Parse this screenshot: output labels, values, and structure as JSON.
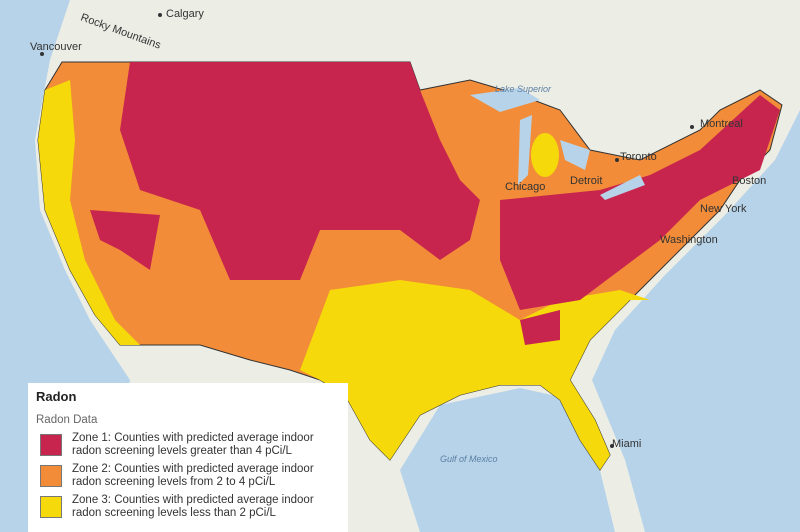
{
  "map": {
    "labels": {
      "rocky": "Rocky Mountains",
      "calgary": "Calgary",
      "vancouver": "Vancouver",
      "montreal": "Montreal",
      "toronto": "Toronto",
      "detroit": "Detroit",
      "chicago": "Chicago",
      "boston": "Boston",
      "new_york": "New York",
      "washington": "Washington",
      "miami": "Miami",
      "lake_superior": "Lake Superior",
      "gulf": "Gulf of Mexico"
    }
  },
  "legend": {
    "title": "Radon",
    "subtitle": "Radon Data",
    "zones": [
      {
        "label": "Zone 1: Counties with predicted average indoor radon screening levels greater than 4 pCi/L",
        "color": "#c7254e"
      },
      {
        "label": "Zone 2: Counties with predicted average indoor radon screening levels from 2 to 4 pCi/L",
        "color": "#f28c38"
      },
      {
        "label": "Zone 3: Counties with predicted average indoor radon screening levels less than 2 pCi/L",
        "color": "#f5d90a"
      }
    ]
  }
}
